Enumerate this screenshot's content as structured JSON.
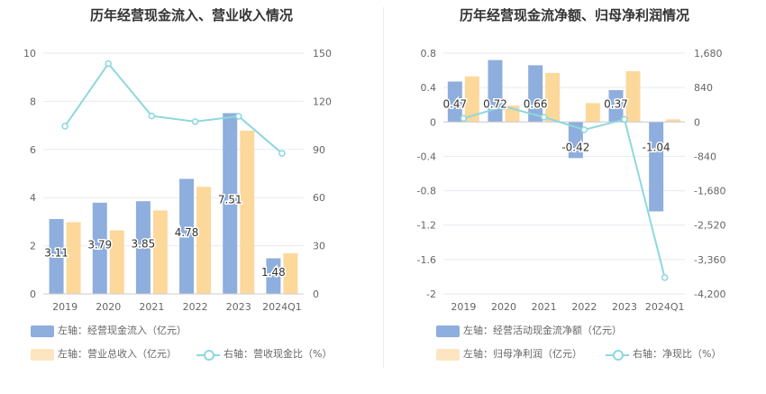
{
  "chart_data": [
    {
      "type": "bar",
      "title": "历年经营现金流入、营业收入情况",
      "categories": [
        "2019",
        "2020",
        "2021",
        "2022",
        "2023",
        "2024Q1"
      ],
      "left_axis": {
        "min": 0,
        "max": 10,
        "ticks": [
          "0",
          "2",
          "4",
          "6",
          "8",
          "10"
        ]
      },
      "right_axis": {
        "min": 0,
        "max": 150,
        "ticks": [
          "0",
          "30",
          "60",
          "90",
          "120",
          "150"
        ]
      },
      "series": [
        {
          "name": "左轴：经营现金流入（亿元）",
          "axis": "left",
          "kind": "bar",
          "color": "#8eaedd",
          "values": [
            3.11,
            3.79,
            3.85,
            4.78,
            7.51,
            1.48
          ],
          "labels": [
            "3.11",
            "3.79",
            "3.85",
            "4.78",
            "7.51",
            "1.48"
          ]
        },
        {
          "name": "左轴：营业总收入（亿元）",
          "axis": "left",
          "kind": "bar",
          "color": "#fdd89b",
          "values": [
            2.98,
            2.64,
            3.47,
            4.45,
            6.78,
            1.69
          ]
        },
        {
          "name": "右轴：营收现金比（%）",
          "axis": "right",
          "kind": "line",
          "color": "#8dd8de",
          "values": [
            104.5,
            143.5,
            110.9,
            107.4,
            110.7,
            87.6
          ]
        }
      ]
    },
    {
      "type": "bar",
      "title": "历年经营现金流净额、归母净利润情况",
      "categories": [
        "2019",
        "2020",
        "2021",
        "2022",
        "2023",
        "2024Q1"
      ],
      "left_axis": {
        "min": -2,
        "max": 0.8,
        "ticks": [
          "0.8",
          "0.4",
          "0",
          "-0.4",
          "-0.8",
          "-1.2",
          "-1.6",
          "-2"
        ]
      },
      "right_axis": {
        "min": -4200,
        "max": 1680,
        "ticks": [
          "1,680",
          "840",
          "0",
          "-840",
          "-1,680",
          "-2,520",
          "-3,360",
          "-4,200"
        ]
      },
      "series": [
        {
          "name": "左轴：经营活动现金流净额（亿元）",
          "axis": "left",
          "kind": "bar",
          "color": "#8eaedd",
          "values": [
            0.47,
            0.72,
            0.66,
            -0.42,
            0.37,
            -1.04
          ],
          "labels": [
            "0.47",
            "0.72",
            "0.66",
            "-0.42",
            "0.37",
            "-1.04"
          ]
        },
        {
          "name": "左轴：归母净利润（亿元）",
          "axis": "left",
          "kind": "bar",
          "color": "#fdd89b",
          "values": [
            0.53,
            0.19,
            0.57,
            0.22,
            0.59,
            0.03
          ]
        },
        {
          "name": "右轴：净现比（%）",
          "axis": "right",
          "kind": "line",
          "color": "#8dd8de",
          "values": [
            88,
            380,
            117,
            -190,
            63,
            -3800
          ]
        }
      ]
    }
  ]
}
